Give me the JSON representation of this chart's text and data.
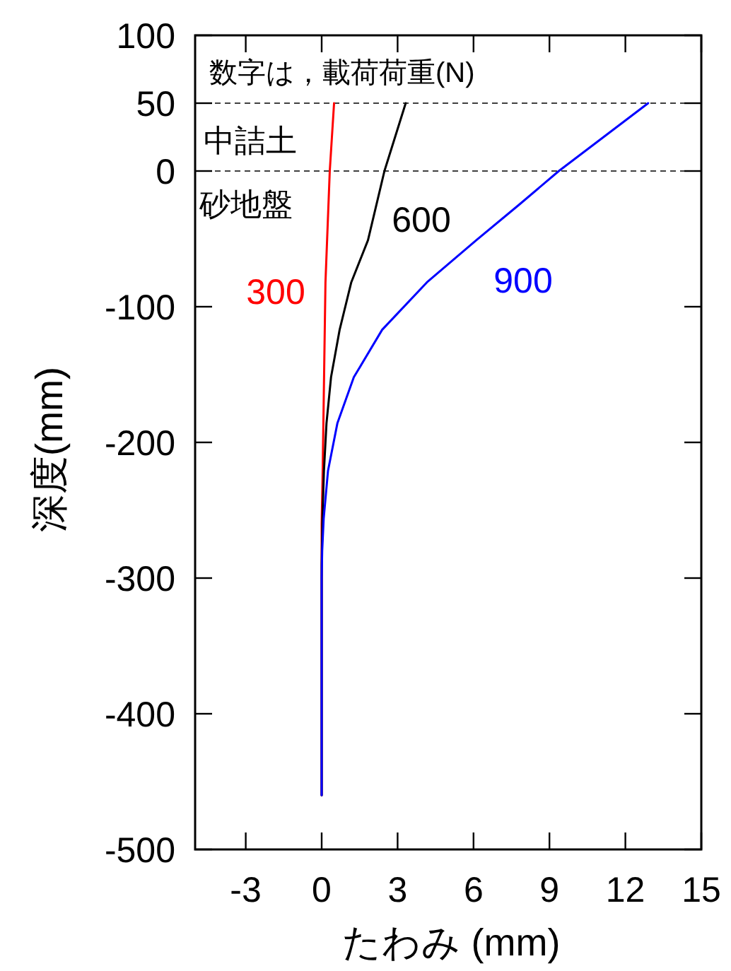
{
  "chart_data": {
    "type": "line",
    "xlabel": "たわみ (mm)",
    "ylabel": "深度(mm)",
    "xlim": [
      -5,
      15
    ],
    "xticks": [
      -3,
      0,
      3,
      6,
      9,
      12,
      15
    ],
    "ylim": [
      -500,
      100
    ],
    "yticks": [
      100,
      50,
      0,
      -100,
      -200,
      -300,
      -400,
      -500
    ],
    "grid": false,
    "marker": "none",
    "line_style": "solid",
    "ref_lines": [
      {
        "axis": "y",
        "value": 50,
        "line_style": "dashed",
        "color": "#000000"
      },
      {
        "axis": "y",
        "value": 0,
        "line_style": "dashed",
        "color": "#000000"
      }
    ],
    "annotations": [
      "数字は，載荷荷重(N)",
      "中詰土",
      "砂地盤"
    ],
    "series": [
      {
        "name": "300",
        "color": "#ff0000",
        "x": [
          0,
          0,
          0.04,
          0.15,
          0.32,
          0.49
        ],
        "values": [
          -460,
          -260,
          -221,
          -82,
          0,
          50
        ]
      },
      {
        "name": "600",
        "color": "#000000",
        "x": [
          0,
          0,
          0.03,
          0.09,
          0.19,
          0.37,
          0.71,
          1.17,
          1.83,
          2.48,
          3.32
        ],
        "values": [
          -460,
          -290,
          -256,
          -221,
          -186,
          -152,
          -117,
          -82,
          -51,
          0,
          50
        ]
      },
      {
        "name": "900",
        "color": "#0000ff",
        "x": [
          0,
          0,
          0.02,
          0.08,
          0.25,
          0.62,
          1.27,
          2.39,
          4.16,
          6.11,
          7.79,
          9.37,
          12.9
        ],
        "values": [
          -460,
          -300,
          -280,
          -256,
          -221,
          -186,
          -152,
          -117,
          -82,
          -51,
          -25,
          0,
          50
        ]
      }
    ]
  }
}
